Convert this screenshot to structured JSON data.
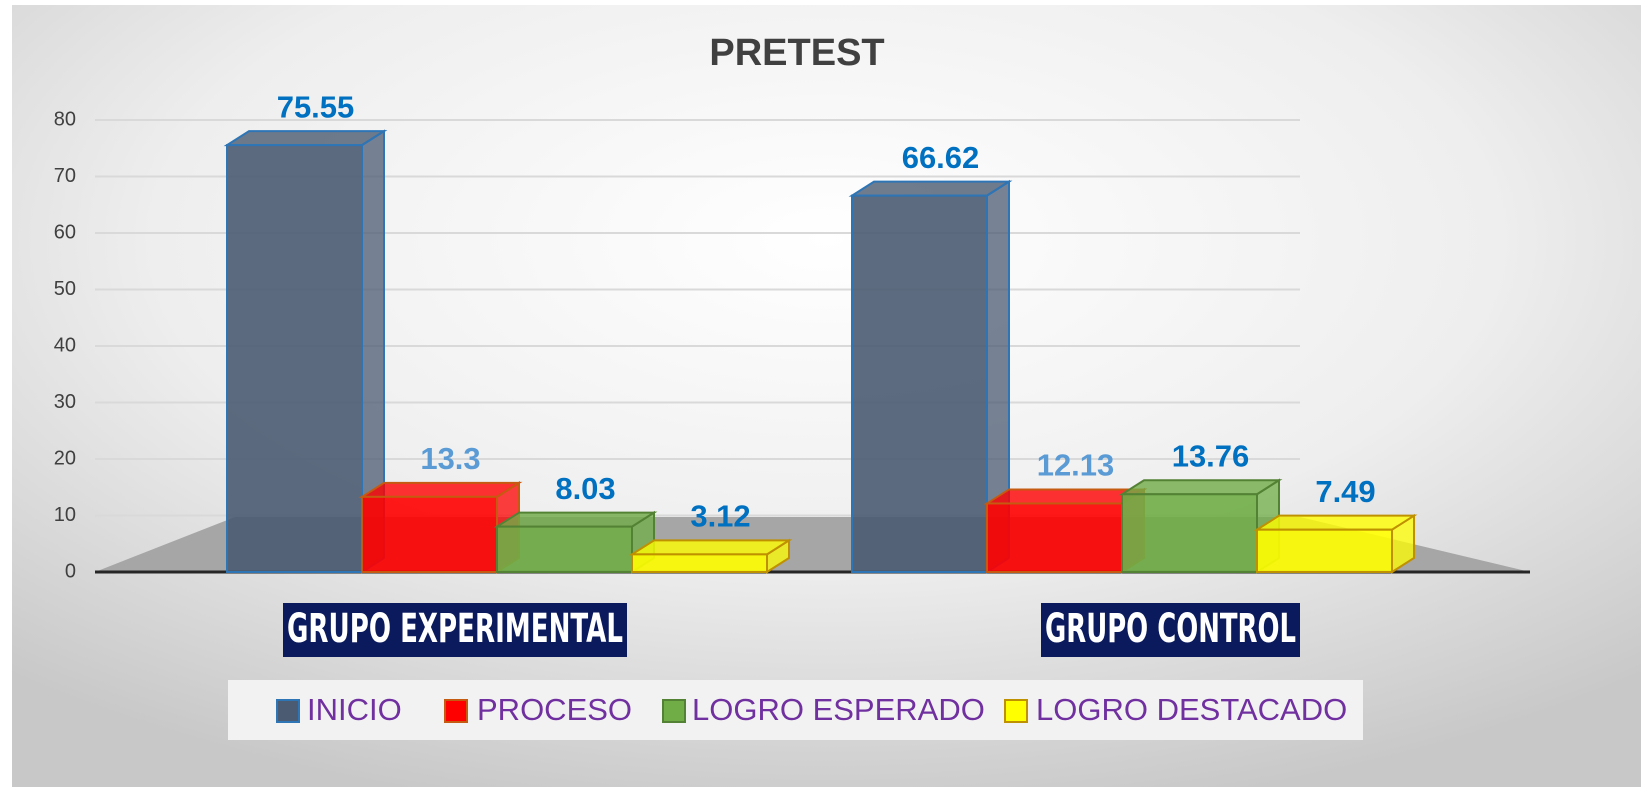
{
  "chart_data": {
    "type": "bar3d",
    "title": "PRETEST",
    "categories": [
      "GRUPO EXPERIMENTAL",
      "GRUPO CONTROL"
    ],
    "series": [
      {
        "name": "INICIO",
        "color": "#4b5b72",
        "stroke": "#2e75b6",
        "label_color": "#0070c0",
        "values": [
          75.55,
          66.62
        ]
      },
      {
        "name": "PROCESO",
        "color": "#ff0000",
        "stroke": "#c55a11",
        "label_color": "#5b9bd5",
        "values": [
          13.3,
          12.13
        ]
      },
      {
        "name": "LOGRO ESPERADO",
        "color": "#70ad47",
        "stroke": "#548235",
        "label_color": "#0070c0",
        "values": [
          8.03,
          13.76
        ]
      },
      {
        "name": "LOGRO DESTACADO",
        "color": "#ffff00",
        "stroke": "#bf9000",
        "label_color": "#0070c0",
        "values": [
          3.12,
          7.49
        ]
      }
    ],
    "ylim": [
      0,
      80
    ],
    "yticks": [
      0,
      10,
      20,
      30,
      40,
      50,
      60,
      70,
      80
    ],
    "grid": true,
    "legend": "bottom"
  }
}
